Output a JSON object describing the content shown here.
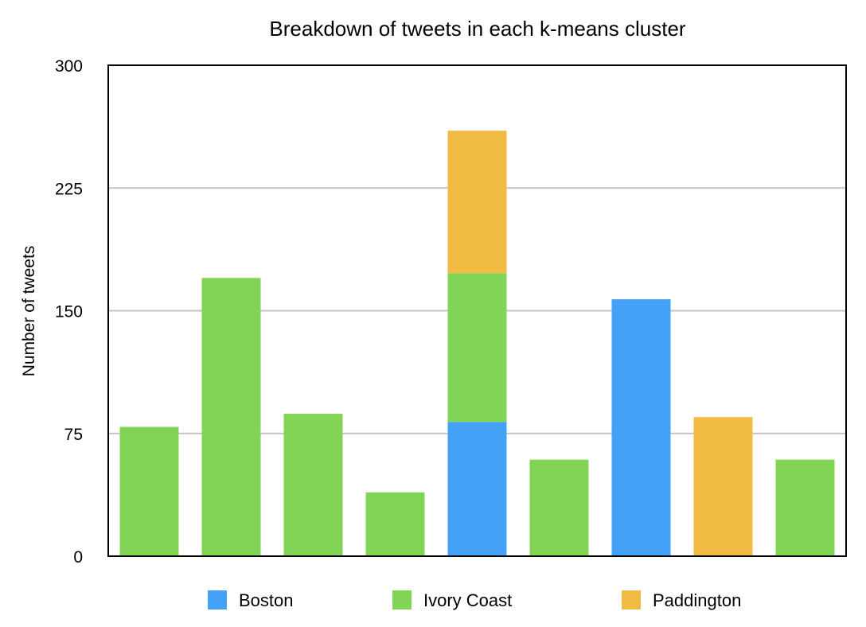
{
  "chart_data": {
    "type": "bar",
    "stacked": true,
    "title": "Breakdown of tweets in each k-means cluster",
    "xlabel": "",
    "ylabel": "Number of tweets",
    "ylim": [
      0,
      300
    ],
    "yticks": [
      0,
      75,
      150,
      225,
      300
    ],
    "grid": true,
    "legend_position": "bottom",
    "categories": [
      "",
      "",
      "",
      "",
      "",
      "",
      "",
      "",
      ""
    ],
    "series": [
      {
        "name": "Boston",
        "color": "#43a2f7",
        "values": [
          0,
          0,
          0,
          0,
          82,
          0,
          157,
          0,
          0
        ]
      },
      {
        "name": "Ivory Coast",
        "color": "#82d456",
        "values": [
          79,
          170,
          87,
          39,
          91,
          59,
          0,
          0,
          59
        ]
      },
      {
        "name": "Paddington",
        "color": "#f1bb43",
        "values": [
          0,
          0,
          0,
          0,
          87,
          0,
          0,
          85,
          0
        ]
      }
    ]
  }
}
